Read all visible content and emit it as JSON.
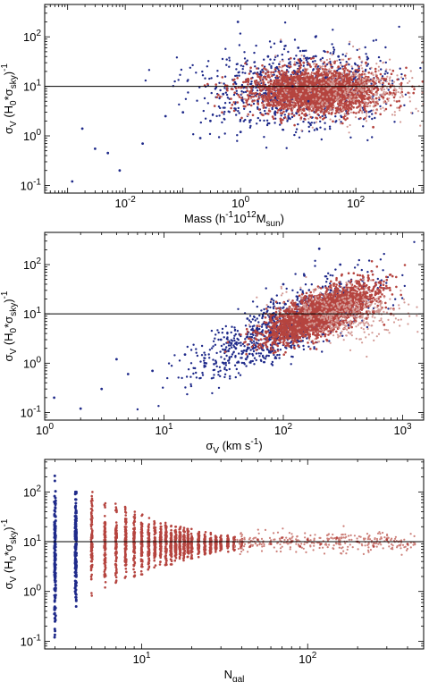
{
  "colors": {
    "blue": "#1f2a8a",
    "red": "#b5443f",
    "refline": "#000000"
  },
  "chart_data": [
    {
      "type": "scatter",
      "xlabel_parts": [
        "Mass  (h",
        "-1",
        "10",
        "12",
        "M",
        "sun",
        ")"
      ],
      "ylabel_parts": [
        "σ",
        "V",
        " (H",
        "0",
        "*σ",
        "sky",
        ")",
        "-1"
      ],
      "xscale": "log",
      "yscale": "log",
      "xlim": [
        0.0004,
        1500
      ],
      "ylim": [
        0.07,
        450
      ],
      "xticks": [
        {
          "base": "10",
          "exp": "-2",
          "value": 0.01
        },
        {
          "base": "10",
          "exp": "0",
          "value": 1
        },
        {
          "base": "10",
          "exp": "2",
          "value": 100
        }
      ],
      "yticks": [
        {
          "base": "10",
          "exp": "-1",
          "value": 0.1
        },
        {
          "base": "10",
          "exp": "0",
          "value": 1
        },
        {
          "base": "10",
          "exp": "1",
          "value": 10
        },
        {
          "base": "10",
          "exp": "2",
          "value": 100
        }
      ],
      "reference_line_y": 10,
      "series": [
        {
          "color": "blue",
          "points": [
            [
              0.0012,
              0.12
            ],
            [
              0.003,
              0.55
            ],
            [
              0.0018,
              1.4
            ],
            [
              0.005,
              0.45
            ],
            [
              0.008,
              0.2
            ],
            [
              0.02,
              0.7
            ],
            [
              0.05,
              2.5
            ],
            [
              0.1,
              3
            ],
            [
              0.3,
              2
            ],
            [
              0.5,
              7
            ],
            [
              0.8,
              12
            ],
            [
              1.5,
              20
            ],
            [
              3,
              40
            ],
            [
              5,
              80
            ],
            [
              0.9,
              200
            ],
            [
              10,
              60
            ],
            [
              20,
              100
            ],
            [
              50,
              40
            ],
            [
              2,
              5
            ],
            [
              8,
              10
            ],
            [
              30,
              15
            ],
            [
              1,
              1.2
            ],
            [
              0.2,
              0.9
            ],
            [
              4,
              3
            ],
            [
              15,
              5
            ],
            [
              100,
              20
            ]
          ]
        },
        {
          "color": "red",
          "points": [
            [
              3,
              5
            ],
            [
              10,
              8
            ],
            [
              30,
              10
            ],
            [
              100,
              12
            ],
            [
              300,
              6
            ],
            [
              600,
              4
            ],
            [
              50,
              25
            ],
            [
              150,
              30
            ],
            [
              20,
              3
            ],
            [
              5,
              2
            ],
            [
              200,
              1.5
            ],
            [
              8,
              15
            ],
            [
              60,
              8
            ],
            [
              400,
              10
            ]
          ]
        }
      ]
    },
    {
      "type": "scatter",
      "xlabel_parts": [
        "σ",
        "V",
        "  (km s",
        "-1",
        ")"
      ],
      "ylabel_parts": [
        "σ",
        "V",
        " (H",
        "0",
        "*σ",
        "sky",
        ")",
        "-1"
      ],
      "xscale": "log",
      "yscale": "log",
      "xlim": [
        1,
        1500
      ],
      "ylim": [
        0.07,
        450
      ],
      "xticks": [
        {
          "base": "10",
          "exp": "0",
          "value": 1
        },
        {
          "base": "10",
          "exp": "1",
          "value": 10
        },
        {
          "base": "10",
          "exp": "2",
          "value": 100
        },
        {
          "base": "10",
          "exp": "3",
          "value": 1000
        }
      ],
      "yticks": [
        {
          "base": "10",
          "exp": "-1",
          "value": 0.1
        },
        {
          "base": "10",
          "exp": "0",
          "value": 1
        },
        {
          "base": "10",
          "exp": "1",
          "value": 10
        },
        {
          "base": "10",
          "exp": "2",
          "value": 100
        }
      ],
      "reference_line_y": 10,
      "series": [
        {
          "color": "blue",
          "points": [
            [
              1.2,
              0.2
            ],
            [
              2,
              0.12
            ],
            [
              3,
              0.3
            ],
            [
              4,
              1.2
            ],
            [
              5,
              0.6
            ],
            [
              8,
              0.7
            ],
            [
              15,
              1.5
            ],
            [
              30,
              3
            ],
            [
              50,
              8
            ],
            [
              80,
              20
            ],
            [
              150,
              60
            ],
            [
              200,
              210
            ],
            [
              300,
              100
            ],
            [
              100,
              40
            ],
            [
              60,
              5
            ],
            [
              40,
              2
            ],
            [
              250,
              30
            ]
          ]
        },
        {
          "color": "red",
          "points": [
            [
              60,
              3
            ],
            [
              100,
              7
            ],
            [
              200,
              10
            ],
            [
              300,
              12
            ],
            [
              500,
              8
            ],
            [
              700,
              6
            ],
            [
              150,
              20
            ],
            [
              250,
              25
            ],
            [
              400,
              30
            ],
            [
              120,
              4
            ],
            [
              800,
              10
            ]
          ]
        }
      ]
    },
    {
      "type": "scatter",
      "xlabel_parts": [
        "N",
        "gal"
      ],
      "ylabel_parts": [
        "σ",
        "V",
        " (H",
        "0",
        "*σ",
        "sky",
        ")",
        "-1"
      ],
      "xscale": "log",
      "yscale": "log",
      "xlim": [
        2.6,
        500
      ],
      "ylim": [
        0.07,
        450
      ],
      "xticks": [
        {
          "base": "10",
          "exp": "1",
          "value": 10
        },
        {
          "base": "10",
          "exp": "2",
          "value": 100
        }
      ],
      "yticks": [
        {
          "base": "10",
          "exp": "-1",
          "value": 0.1
        },
        {
          "base": "10",
          "exp": "0",
          "value": 1
        },
        {
          "base": "10",
          "exp": "1",
          "value": 10
        },
        {
          "base": "10",
          "exp": "2",
          "value": 100
        }
      ],
      "reference_line_y": 10,
      "columns": [
        {
          "n": 3,
          "lo": 0.12,
          "hi": 210,
          "color": "blue"
        },
        {
          "n": 4,
          "lo": 0.5,
          "hi": 100,
          "color": "blue"
        },
        {
          "n": 5,
          "lo": 0.8,
          "hi": 100,
          "color": "red"
        },
        {
          "n": 6,
          "lo": 1.2,
          "hi": 80,
          "color": "red"
        },
        {
          "n": 7,
          "lo": 1.5,
          "hi": 60,
          "color": "red"
        },
        {
          "n": 8,
          "lo": 1.8,
          "hi": 50,
          "color": "red"
        },
        {
          "n": 9,
          "lo": 2,
          "hi": 40,
          "color": "red"
        },
        {
          "n": 10,
          "lo": 2.2,
          "hi": 35,
          "color": "red"
        },
        {
          "n": 11,
          "lo": 2.5,
          "hi": 30,
          "color": "red"
        },
        {
          "n": 12,
          "lo": 2.8,
          "hi": 28,
          "color": "red"
        },
        {
          "n": 13,
          "lo": 3,
          "hi": 25,
          "color": "red"
        },
        {
          "n": 14,
          "lo": 3.2,
          "hi": 24,
          "color": "red"
        },
        {
          "n": 15,
          "lo": 3.5,
          "hi": 22,
          "color": "red"
        },
        {
          "n": 16,
          "lo": 3.7,
          "hi": 20,
          "color": "red"
        },
        {
          "n": 17,
          "lo": 4,
          "hi": 20,
          "color": "red"
        },
        {
          "n": 18,
          "lo": 4.2,
          "hi": 19,
          "color": "red"
        },
        {
          "n": 19,
          "lo": 4.4,
          "hi": 18,
          "color": "red"
        },
        {
          "n": 20,
          "lo": 4.6,
          "hi": 18,
          "color": "red"
        },
        {
          "n": 22,
          "lo": 4.8,
          "hi": 17,
          "color": "red"
        },
        {
          "n": 24,
          "lo": 5,
          "hi": 16,
          "color": "red"
        },
        {
          "n": 26,
          "lo": 5.3,
          "hi": 15,
          "color": "red"
        },
        {
          "n": 28,
          "lo": 5.6,
          "hi": 15,
          "color": "red"
        },
        {
          "n": 30,
          "lo": 6,
          "hi": 14,
          "color": "red"
        },
        {
          "n": 33,
          "lo": 6.3,
          "hi": 14,
          "color": "red"
        },
        {
          "n": 36,
          "lo": 6.6,
          "hi": 13,
          "color": "red"
        },
        {
          "n": 40,
          "lo": 7,
          "hi": 13,
          "color": "red"
        }
      ],
      "series": [
        {
          "color": "red",
          "points": [
            [
              45,
              8
            ],
            [
              50,
              11
            ],
            [
              60,
              9
            ],
            [
              70,
              12
            ],
            [
              80,
              10
            ],
            [
              90,
              8
            ],
            [
              100,
              11
            ],
            [
              120,
              9
            ],
            [
              150,
              12
            ],
            [
              200,
              10
            ],
            [
              250,
              8
            ],
            [
              300,
              11
            ],
            [
              400,
              9
            ]
          ]
        }
      ]
    }
  ]
}
